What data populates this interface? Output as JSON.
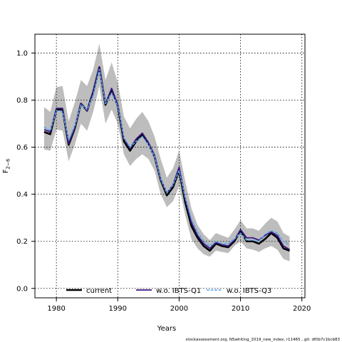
{
  "chart_data": {
    "type": "line",
    "xlabel": "Years",
    "ylabel": "F",
    "ylabel_subscript": "2−6",
    "xlim": [
      1976.5,
      2020.5
    ],
    "ylim": [
      -0.04,
      1.08
    ],
    "xticks": [
      1980,
      1990,
      2000,
      2010,
      2020
    ],
    "yticks": [
      0.0,
      0.2,
      0.4,
      0.6,
      0.8,
      1.0
    ],
    "ytick_labels": [
      "0.0",
      "0.2",
      "0.4",
      "0.6",
      "0.8",
      "1.0"
    ],
    "grid": true,
    "legend_position": "bottom",
    "footer": "stockassessment.org, NSwhiting_2019_new_index, r11465 , git: df0b7c1bcb83",
    "x": [
      1978,
      1979,
      1980,
      1981,
      1982,
      1983,
      1984,
      1985,
      1986,
      1987,
      1988,
      1989,
      1990,
      1991,
      1992,
      1993,
      1994,
      1995,
      1996,
      1997,
      1998,
      1999,
      2000,
      2001,
      2002,
      2003,
      2004,
      2005,
      2006,
      2007,
      2008,
      2009,
      2010,
      2011,
      2012,
      2013,
      2014,
      2015,
      2016,
      2017,
      2018
    ],
    "band": {
      "upper": [
        0.77,
        0.75,
        0.855,
        0.86,
        0.71,
        0.79,
        0.885,
        0.86,
        0.93,
        1.04,
        0.885,
        0.96,
        0.875,
        0.73,
        0.68,
        0.72,
        0.75,
        0.71,
        0.645,
        0.55,
        0.47,
        0.51,
        0.585,
        0.455,
        0.34,
        0.27,
        0.23,
        0.205,
        0.235,
        0.225,
        0.215,
        0.25,
        0.29,
        0.255,
        0.255,
        0.245,
        0.275,
        0.3,
        0.285,
        0.235,
        0.22
      ],
      "lower": [
        0.59,
        0.585,
        0.675,
        0.67,
        0.54,
        0.61,
        0.7,
        0.67,
        0.75,
        0.86,
        0.7,
        0.76,
        0.7,
        0.57,
        0.52,
        0.55,
        0.57,
        0.55,
        0.5,
        0.4,
        0.345,
        0.37,
        0.435,
        0.31,
        0.21,
        0.17,
        0.145,
        0.135,
        0.16,
        0.155,
        0.15,
        0.18,
        0.2,
        0.17,
        0.165,
        0.155,
        0.17,
        0.18,
        0.165,
        0.125,
        0.115
      ]
    },
    "series": [
      {
        "name": "current",
        "color": "#000000",
        "style": "solid",
        "width": 2.6,
        "values": [
          0.665,
          0.655,
          0.76,
          0.76,
          0.61,
          0.68,
          0.785,
          0.755,
          0.835,
          0.94,
          0.78,
          0.845,
          0.775,
          0.625,
          0.585,
          0.625,
          0.655,
          0.615,
          0.56,
          0.46,
          0.395,
          0.43,
          0.5,
          0.365,
          0.265,
          0.215,
          0.18,
          0.16,
          0.19,
          0.18,
          0.175,
          0.2,
          0.245,
          0.2,
          0.2,
          0.19,
          0.21,
          0.235,
          0.215,
          0.17,
          0.16
        ]
      },
      {
        "name": "w.o. IBTS-Q1",
        "color": "#3a1880",
        "style": "solid",
        "width": 1.8,
        "values": [
          0.675,
          0.665,
          0.765,
          0.765,
          0.615,
          0.685,
          0.785,
          0.755,
          0.835,
          0.94,
          0.785,
          0.85,
          0.78,
          0.635,
          0.595,
          0.635,
          0.66,
          0.62,
          0.565,
          0.465,
          0.405,
          0.44,
          0.515,
          0.38,
          0.28,
          0.225,
          0.19,
          0.17,
          0.195,
          0.185,
          0.18,
          0.205,
          0.25,
          0.215,
          0.215,
          0.205,
          0.225,
          0.24,
          0.225,
          0.18,
          0.165
        ]
      },
      {
        "name": "w.o. IBTS-Q3",
        "color": "#5aa6e8",
        "style": "dashed",
        "width": 1.6,
        "values": [
          0.685,
          0.67,
          0.755,
          0.75,
          0.63,
          0.69,
          0.78,
          0.76,
          0.82,
          0.93,
          0.785,
          0.83,
          0.775,
          0.64,
          0.6,
          0.625,
          0.645,
          0.61,
          0.56,
          0.465,
          0.405,
          0.44,
          0.5,
          0.385,
          0.295,
          0.24,
          0.2,
          0.18,
          0.2,
          0.19,
          0.19,
          0.21,
          0.235,
          0.205,
          0.205,
          0.2,
          0.23,
          0.245,
          0.235,
          0.2,
          0.185
        ]
      }
    ]
  }
}
